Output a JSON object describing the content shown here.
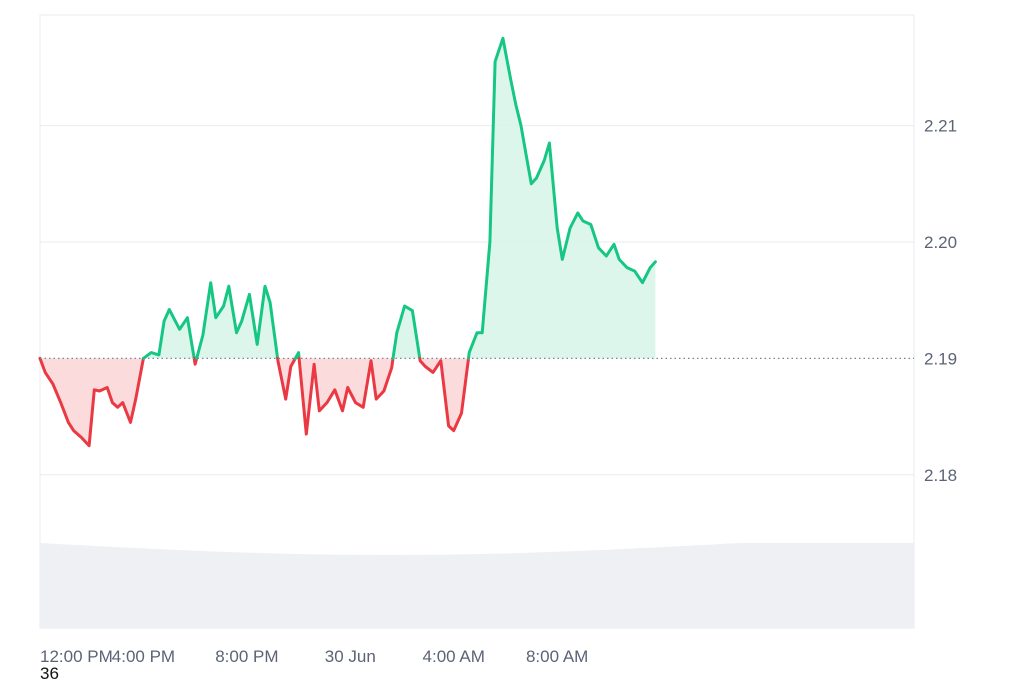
{
  "chart_data": {
    "type": "line",
    "title": "",
    "xlabel": "",
    "ylabel": "",
    "baseline": 2.19,
    "ylim": [
      2.175,
      2.2195
    ],
    "y_ticks": [
      2.18,
      2.19,
      2.2,
      2.21
    ],
    "y_tick_labels": [
      "2.18",
      "2.19",
      "2.20",
      "2.21"
    ],
    "x_range_hours": [
      12,
      45.8
    ],
    "x_ticks": [
      {
        "hour": 12,
        "label": "12:00 PM"
      },
      {
        "hour": 16,
        "label": "4:00 PM"
      },
      {
        "hour": 20,
        "label": "8:00 PM"
      },
      {
        "hour": 24,
        "label": "30 Jun"
      },
      {
        "hour": 28,
        "label": "4:00 AM"
      },
      {
        "hour": 32,
        "label": "8:00 AM"
      }
    ],
    "colors": {
      "up": "#16c784",
      "down": "#ea3943",
      "up_fill": "#d7f5e7",
      "down_fill": "#fbd5d7",
      "grid": "#e9ebef",
      "volume": "#eef0f3"
    },
    "series": [
      {
        "x": [
          12.0,
          12.2,
          12.5,
          12.8,
          13.1,
          13.3,
          13.6,
          13.9,
          14.1,
          14.3,
          14.6,
          14.8,
          15.0,
          15.2,
          15.5,
          15.7,
          16.0,
          16.3,
          16.6,
          16.8,
          17.0,
          17.4,
          17.7,
          18.0,
          18.3,
          18.6,
          18.8,
          19.1,
          19.3,
          19.6,
          19.8,
          20.1,
          20.4,
          20.7,
          20.9,
          21.2,
          21.5,
          21.7,
          22.0,
          22.3,
          22.6,
          22.8,
          23.1,
          23.4,
          23.7,
          23.9,
          24.2,
          24.5,
          24.8,
          25.0,
          25.3,
          25.6,
          25.8,
          26.1,
          26.4,
          26.7,
          26.9,
          27.2,
          27.5,
          27.8,
          28.0,
          28.3,
          28.6,
          28.9,
          29.1,
          29.4,
          29.6,
          29.9,
          30.2,
          30.4,
          30.6,
          30.8,
          31.0,
          31.2,
          31.5,
          31.7,
          32.0,
          32.2,
          32.5,
          32.8,
          33.0,
          33.3,
          33.6,
          33.9,
          34.2,
          34.4,
          34.7,
          35.0,
          35.3,
          35.6,
          35.8
        ],
        "y": [
          2.19,
          2.1888,
          2.1878,
          2.1862,
          2.1845,
          2.1838,
          2.1832,
          2.1825,
          2.1873,
          2.1872,
          2.1875,
          2.1862,
          2.1858,
          2.1862,
          2.1845,
          2.1865,
          2.19,
          2.1905,
          2.1903,
          2.1932,
          2.1942,
          2.1925,
          2.1935,
          2.1895,
          2.192,
          2.1965,
          2.1935,
          2.1945,
          2.1962,
          2.1922,
          2.1932,
          2.1955,
          2.1912,
          2.1962,
          2.1948,
          2.1898,
          2.1865,
          2.1893,
          2.1905,
          2.1835,
          2.1895,
          2.1855,
          2.1862,
          2.1873,
          2.1855,
          2.1875,
          2.1862,
          2.1858,
          2.1898,
          2.1865,
          2.1872,
          2.1892,
          2.1922,
          2.1945,
          2.1941,
          2.1898,
          2.1893,
          2.1888,
          2.1898,
          2.1842,
          2.1838,
          2.1853,
          2.1905,
          2.1922,
          2.1922,
          2.2,
          2.2155,
          2.2175,
          2.214,
          2.2118,
          2.21,
          2.2075,
          2.205,
          2.2055,
          2.207,
          2.2085,
          2.2012,
          2.1985,
          2.2012,
          2.2025,
          2.2018,
          2.2015,
          2.1995,
          2.1988,
          2.1998,
          2.1985,
          2.1978,
          2.1975,
          2.1965,
          2.1978,
          2.1983
        ]
      }
    ]
  },
  "footer": {
    "corner_label": "36"
  }
}
